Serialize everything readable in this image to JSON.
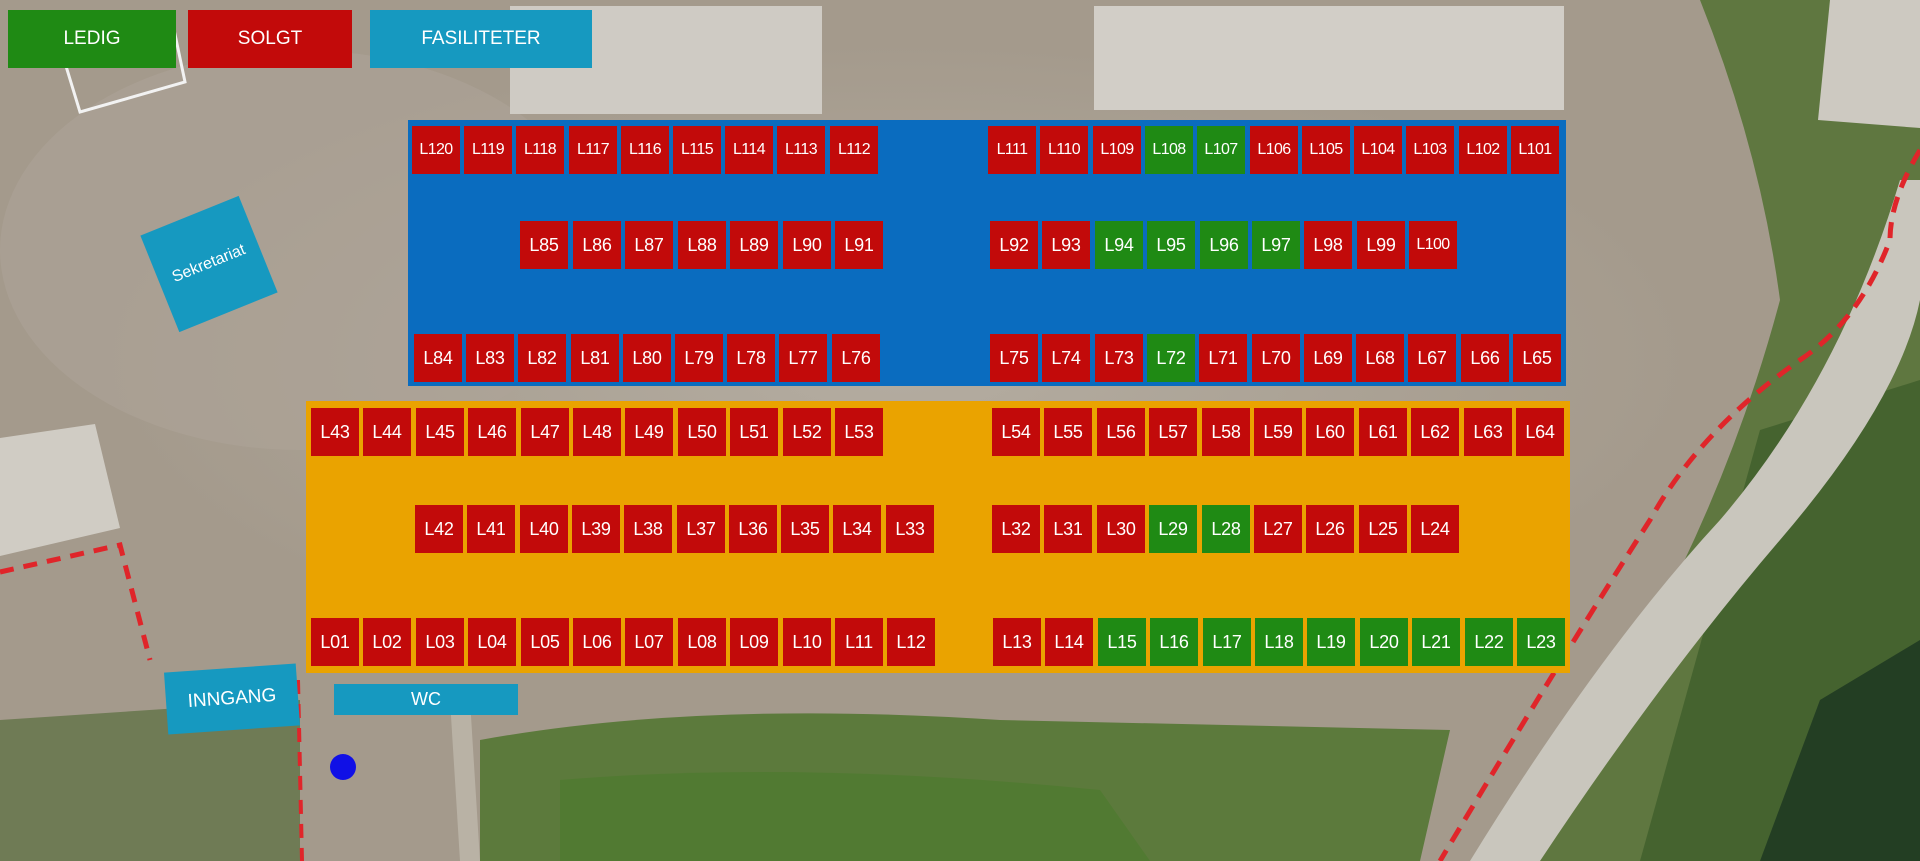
{
  "colors": {
    "ledig": "#1f8a14",
    "solgt": "#c20a0a",
    "fasiliteter": "#1699c0",
    "zone_blue": "#0a6cbf",
    "zone_orange": "#eaa300",
    "route": "#e0252a",
    "marker": "#1010e6"
  },
  "legend": {
    "ledig": "LEDIG",
    "solgt": "SOLGT",
    "fasiliteter": "FASILITETER"
  },
  "facilities": {
    "sekretariat": "Sekretariat",
    "inngang": "INNGANG",
    "wc": "WC"
  },
  "stalls": [
    {
      "id": "L120",
      "status": "solgt"
    },
    {
      "id": "L119",
      "status": "solgt"
    },
    {
      "id": "L118",
      "status": "solgt"
    },
    {
      "id": "L117",
      "status": "solgt"
    },
    {
      "id": "L116",
      "status": "solgt"
    },
    {
      "id": "L115",
      "status": "solgt"
    },
    {
      "id": "L114",
      "status": "solgt"
    },
    {
      "id": "L113",
      "status": "solgt"
    },
    {
      "id": "L112",
      "status": "solgt"
    },
    {
      "id": "L111",
      "status": "solgt"
    },
    {
      "id": "L110",
      "status": "solgt"
    },
    {
      "id": "L109",
      "status": "solgt"
    },
    {
      "id": "L108",
      "status": "ledig"
    },
    {
      "id": "L107",
      "status": "ledig"
    },
    {
      "id": "L106",
      "status": "solgt"
    },
    {
      "id": "L105",
      "status": "solgt"
    },
    {
      "id": "L104",
      "status": "solgt"
    },
    {
      "id": "L103",
      "status": "solgt"
    },
    {
      "id": "L102",
      "status": "solgt"
    },
    {
      "id": "L101",
      "status": "solgt"
    },
    {
      "id": "L85",
      "status": "solgt"
    },
    {
      "id": "L86",
      "status": "solgt"
    },
    {
      "id": "L87",
      "status": "solgt"
    },
    {
      "id": "L88",
      "status": "solgt"
    },
    {
      "id": "L89",
      "status": "solgt"
    },
    {
      "id": "L90",
      "status": "solgt"
    },
    {
      "id": "L91",
      "status": "solgt"
    },
    {
      "id": "L92",
      "status": "solgt"
    },
    {
      "id": "L93",
      "status": "solgt"
    },
    {
      "id": "L94",
      "status": "ledig"
    },
    {
      "id": "L95",
      "status": "ledig"
    },
    {
      "id": "L96",
      "status": "ledig"
    },
    {
      "id": "L97",
      "status": "ledig"
    },
    {
      "id": "L98",
      "status": "solgt"
    },
    {
      "id": "L99",
      "status": "solgt"
    },
    {
      "id": "L100",
      "status": "solgt"
    },
    {
      "id": "L84",
      "status": "solgt"
    },
    {
      "id": "L83",
      "status": "solgt"
    },
    {
      "id": "L82",
      "status": "solgt"
    },
    {
      "id": "L81",
      "status": "solgt"
    },
    {
      "id": "L80",
      "status": "solgt"
    },
    {
      "id": "L79",
      "status": "solgt"
    },
    {
      "id": "L78",
      "status": "solgt"
    },
    {
      "id": "L77",
      "status": "solgt"
    },
    {
      "id": "L76",
      "status": "solgt"
    },
    {
      "id": "L75",
      "status": "solgt"
    },
    {
      "id": "L74",
      "status": "solgt"
    },
    {
      "id": "L73",
      "status": "solgt"
    },
    {
      "id": "L72",
      "status": "ledig"
    },
    {
      "id": "L71",
      "status": "solgt"
    },
    {
      "id": "L70",
      "status": "solgt"
    },
    {
      "id": "L69",
      "status": "solgt"
    },
    {
      "id": "L68",
      "status": "solgt"
    },
    {
      "id": "L67",
      "status": "solgt"
    },
    {
      "id": "L66",
      "status": "solgt"
    },
    {
      "id": "L65",
      "status": "solgt"
    },
    {
      "id": "L43",
      "status": "solgt"
    },
    {
      "id": "L44",
      "status": "solgt"
    },
    {
      "id": "L45",
      "status": "solgt"
    },
    {
      "id": "L46",
      "status": "solgt"
    },
    {
      "id": "L47",
      "status": "solgt"
    },
    {
      "id": "L48",
      "status": "solgt"
    },
    {
      "id": "L49",
      "status": "solgt"
    },
    {
      "id": "L50",
      "status": "solgt"
    },
    {
      "id": "L51",
      "status": "solgt"
    },
    {
      "id": "L52",
      "status": "solgt"
    },
    {
      "id": "L53",
      "status": "solgt"
    },
    {
      "id": "L54",
      "status": "solgt"
    },
    {
      "id": "L55",
      "status": "solgt"
    },
    {
      "id": "L56",
      "status": "solgt"
    },
    {
      "id": "L57",
      "status": "solgt"
    },
    {
      "id": "L58",
      "status": "solgt"
    },
    {
      "id": "L59",
      "status": "solgt"
    },
    {
      "id": "L60",
      "status": "solgt"
    },
    {
      "id": "L61",
      "status": "solgt"
    },
    {
      "id": "L62",
      "status": "solgt"
    },
    {
      "id": "L63",
      "status": "solgt"
    },
    {
      "id": "L64",
      "status": "solgt"
    },
    {
      "id": "L42",
      "status": "solgt"
    },
    {
      "id": "L41",
      "status": "solgt"
    },
    {
      "id": "L40",
      "status": "solgt"
    },
    {
      "id": "L39",
      "status": "solgt"
    },
    {
      "id": "L38",
      "status": "solgt"
    },
    {
      "id": "L37",
      "status": "solgt"
    },
    {
      "id": "L36",
      "status": "solgt"
    },
    {
      "id": "L35",
      "status": "solgt"
    },
    {
      "id": "L34",
      "status": "solgt"
    },
    {
      "id": "L33",
      "status": "solgt"
    },
    {
      "id": "L32",
      "status": "solgt"
    },
    {
      "id": "L31",
      "status": "solgt"
    },
    {
      "id": "L30",
      "status": "solgt"
    },
    {
      "id": "L29",
      "status": "ledig"
    },
    {
      "id": "L28",
      "status": "ledig"
    },
    {
      "id": "L27",
      "status": "solgt"
    },
    {
      "id": "L26",
      "status": "solgt"
    },
    {
      "id": "L25",
      "status": "solgt"
    },
    {
      "id": "L24",
      "status": "solgt"
    },
    {
      "id": "L01",
      "status": "solgt"
    },
    {
      "id": "L02",
      "status": "solgt"
    },
    {
      "id": "L03",
      "status": "solgt"
    },
    {
      "id": "L04",
      "status": "solgt"
    },
    {
      "id": "L05",
      "status": "solgt"
    },
    {
      "id": "L06",
      "status": "solgt"
    },
    {
      "id": "L07",
      "status": "solgt"
    },
    {
      "id": "L08",
      "status": "solgt"
    },
    {
      "id": "L09",
      "status": "solgt"
    },
    {
      "id": "L10",
      "status": "solgt"
    },
    {
      "id": "L11",
      "status": "solgt"
    },
    {
      "id": "L12",
      "status": "solgt"
    },
    {
      "id": "L13",
      "status": "solgt"
    },
    {
      "id": "L14",
      "status": "solgt"
    },
    {
      "id": "L15",
      "status": "ledig"
    },
    {
      "id": "L16",
      "status": "ledig"
    },
    {
      "id": "L17",
      "status": "ledig"
    },
    {
      "id": "L18",
      "status": "ledig"
    },
    {
      "id": "L19",
      "status": "ledig"
    },
    {
      "id": "L20",
      "status": "ledig"
    },
    {
      "id": "L21",
      "status": "ledig"
    },
    {
      "id": "L22",
      "status": "ledig"
    },
    {
      "id": "L23",
      "status": "ledig"
    }
  ]
}
